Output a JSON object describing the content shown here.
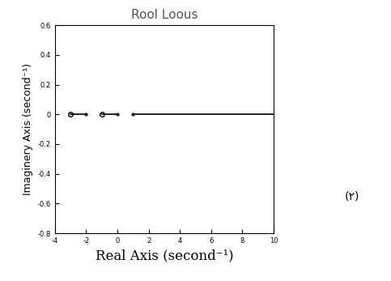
{
  "chart_data": {
    "type": "line",
    "title": "Rool Loous",
    "x_label": "Real Axis (second⁻¹)",
    "y_label": "Imaginery Axis (second⁻¹)",
    "series": [
      {
        "x": [
          -3,
          -2,
          null,
          -1,
          0,
          null,
          1,
          10
        ],
        "values": [
          0,
          0,
          null,
          0,
          0,
          null,
          0,
          0
        ],
        "color": "#000000",
        "line_style": "solid",
        "marker": "none"
      },
      {
        "x": [
          -3,
          -1
        ],
        "values": [
          0,
          0
        ],
        "color": "#000000",
        "line_style": "none",
        "marker": "circle"
      },
      {
        "x": [
          -2,
          0,
          1
        ],
        "values": [
          0,
          0,
          0
        ],
        "color": "#000000",
        "line_style": "none",
        "marker": "point"
      }
    ],
    "xlim": [
      -4,
      10
    ],
    "xticks": [
      -4,
      -2,
      0,
      2,
      4,
      6,
      8,
      10
    ],
    "ylim": [
      -0.8,
      0.6
    ],
    "yticks": [
      -0.8,
      -0.6,
      -0.4,
      -0.2,
      0,
      0.2,
      0.4,
      0.6
    ],
    "annotations": [
      {
        "text": "(۲)"
      }
    ]
  }
}
